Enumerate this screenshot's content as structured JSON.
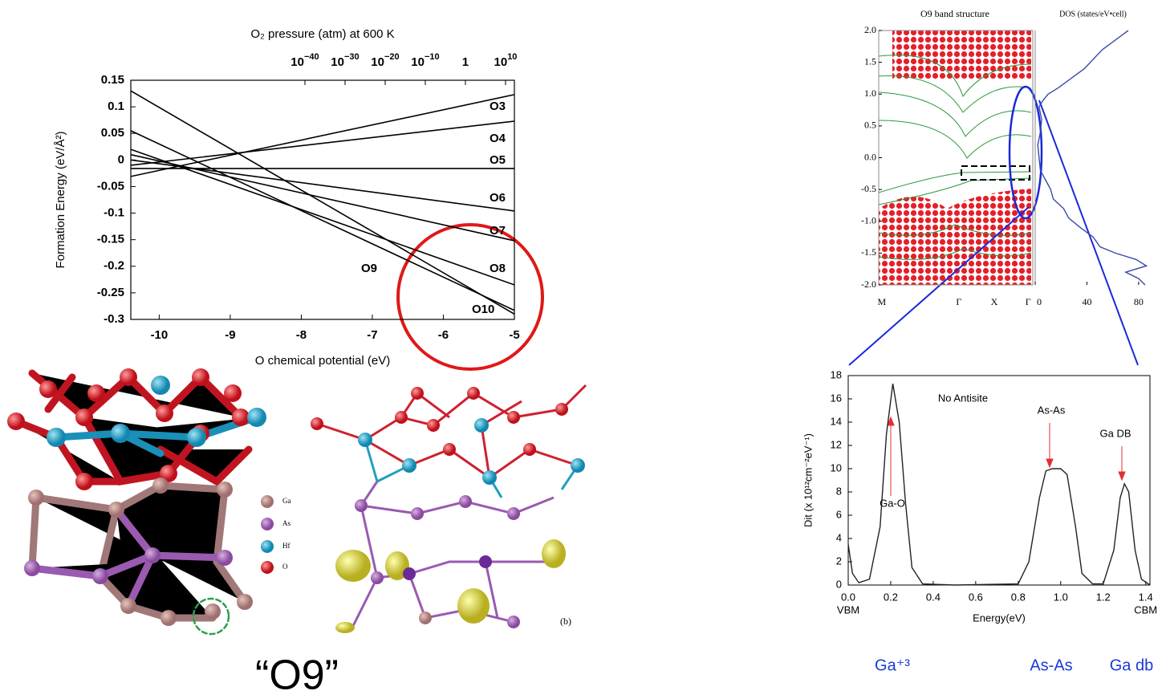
{
  "chart_data": [
    {
      "type": "line",
      "x2label": "O₂ pressure (atm) at 600 K",
      "xlabel": "O chemical potential (eV)",
      "ylabel": "Formation Energy (eV/Å²)",
      "x": [
        -10.4,
        -5
      ],
      "xlim": [
        -10.4,
        -5
      ],
      "xticks": [
        -10,
        -9,
        -8,
        -7,
        -6,
        -5
      ],
      "ylim": [
        -0.3,
        0.15
      ],
      "yticks": [
        0.15,
        0.1,
        0.05,
        0,
        -0.05,
        -0.1,
        -0.15,
        -0.2,
        -0.25,
        -0.3
      ],
      "x2log": true,
      "x2lim": [
        4e-84,
        1600000000000.0
      ],
      "x2ticks": [
        {
          "value": 1e-40,
          "label": "10−40"
        },
        {
          "value": 1e-30,
          "label": "10−30"
        },
        {
          "value": 1e-20,
          "label": "10−20"
        },
        {
          "value": 1e-10,
          "label": "10−10"
        },
        1,
        {
          "value": 10000000000.0,
          "label": "1010"
        }
      ],
      "series": [
        {
          "name": "O3",
          "color": "#000000",
          "values": [
            -0.031,
            0.123
          ]
        },
        {
          "name": "O4",
          "color": "#000000",
          "values": [
            -0.01,
            0.073
          ]
        },
        {
          "name": "O5",
          "color": "#000000",
          "values": [
            -0.016,
            -0.016
          ]
        },
        {
          "name": "O6",
          "color": "#000000",
          "values": [
            0,
            -0.096
          ]
        },
        {
          "name": "O7",
          "color": "#000000",
          "values": [
            0.01,
            -0.152
          ]
        },
        {
          "name": "O8",
          "color": "#000000",
          "values": [
            0.02,
            -0.235
          ]
        },
        {
          "name": "O9",
          "color": "#000000",
          "values": [
            0.13,
            -0.29
          ]
        },
        {
          "name": "O10",
          "color": "#000000",
          "values": [
            0.055,
            -0.283
          ]
        }
      ]
    },
    {
      "type": "band",
      "title": "O9 band structure",
      "categories": [
        "M",
        "Γ",
        "X",
        "Γ"
      ],
      "ylim": [
        -2,
        2
      ],
      "yticks": [
        {
          "value": 2,
          "label": "2.0"
        },
        1.5,
        {
          "value": 1,
          "label": "1.0"
        },
        0.5,
        {
          "value": 0,
          "label": "0.0"
        },
        -0.5,
        {
          "value": -1,
          "label": "-1.0"
        },
        -1.5,
        {
          "value": -2,
          "label": "-2.0"
        }
      ]
    },
    {
      "type": "dos",
      "title": "DOS (states/eV•cell)",
      "xlim": [
        0,
        90
      ],
      "xticks": [
        0,
        40,
        80
      ],
      "ylim": [
        -2,
        2
      ],
      "color": "#3a4aa8",
      "x": [
        2.0,
        1.85,
        1.7,
        1.55,
        1.4,
        1.25,
        1.1,
        1.0,
        0.9,
        0.8,
        0.6,
        0.4,
        0.2,
        0.0,
        -0.2,
        -0.35,
        -0.5,
        -0.65,
        -0.8,
        -0.95,
        -1.1,
        -1.25,
        -1.4,
        -1.5,
        -1.6,
        -1.7,
        -1.8,
        -1.9,
        -2.0
      ],
      "values": [
        72,
        62,
        52,
        45,
        38,
        28,
        18,
        10,
        6,
        3,
        5,
        4,
        2,
        3,
        4,
        8,
        12,
        14,
        22,
        26,
        35,
        45,
        50,
        62,
        78,
        86,
        70,
        80,
        85
      ]
    },
    {
      "type": "line",
      "xlabel": "Energy(eV)",
      "ylabel": "Dit (x 10¹²cm⁻²eV⁻¹)",
      "end_labels": [
        "VBM",
        "CBM"
      ],
      "xlim": [
        0,
        1.42
      ],
      "ylim": [
        0,
        18
      ],
      "xticks": [
        {
          "value": 0,
          "label": "0.0"
        },
        0.2,
        0.4,
        0.6,
        0.8,
        {
          "value": 1,
          "label": "1.0"
        },
        1.2,
        1.4
      ],
      "yticks": [
        0,
        2,
        4,
        6,
        8,
        10,
        12,
        14,
        16,
        18
      ],
      "color": "#222222",
      "annotations": [
        "No Antisite",
        "As-As",
        "Ga DB",
        "Ga-O"
      ],
      "x": [
        0,
        0.02,
        0.05,
        0.1,
        0.15,
        0.18,
        0.21,
        0.24,
        0.27,
        0.3,
        0.35,
        0.5,
        0.8,
        0.85,
        0.9,
        0.93,
        0.96,
        1.0,
        1.03,
        1.07,
        1.1,
        1.15,
        1.2,
        1.25,
        1.28,
        1.3,
        1.32,
        1.35,
        1.38,
        1.42
      ],
      "values": [
        3.5,
        1,
        0.2,
        0.5,
        5,
        13,
        17.3,
        14,
        7,
        1.5,
        0.1,
        0,
        0.1,
        2,
        7.5,
        9.8,
        10,
        10,
        9.5,
        5,
        1,
        0.1,
        0.1,
        3,
        7.5,
        8.7,
        8,
        3,
        0.5,
        0
      ]
    }
  ],
  "figure": {
    "legend": [
      "Ga",
      "As",
      "Hf",
      "O"
    ],
    "panel_label": "(b)",
    "caption": "“O9”",
    "bottom_labels": [
      "Ga⁺³",
      "As-As",
      "Ga db"
    ]
  }
}
